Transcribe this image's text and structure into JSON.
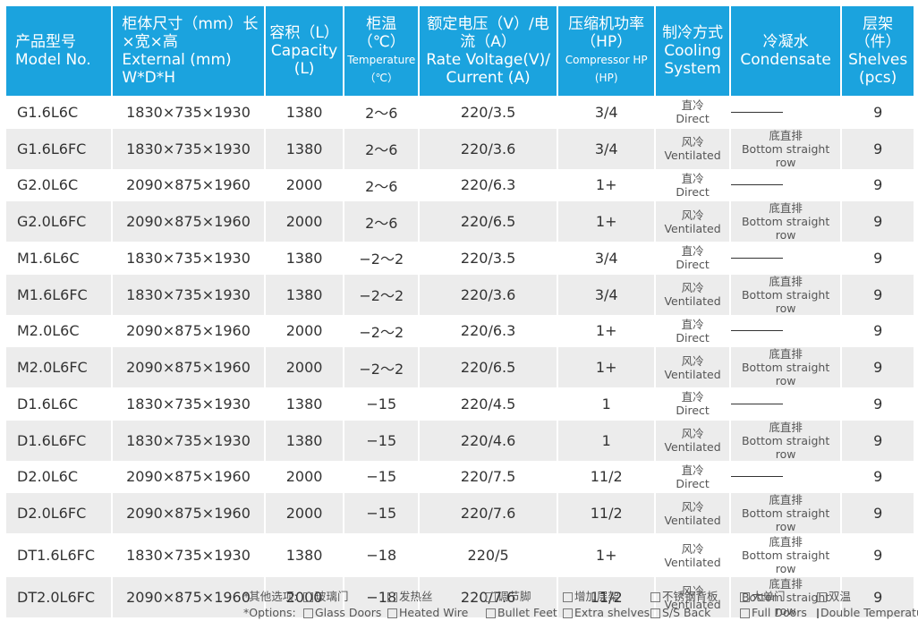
{
  "headers": [
    {
      "cn": "产品型号",
      "en": "Model No."
    },
    {
      "cn": "柜体尺寸（mm）长×宽×高",
      "en": "External (mm) W*D*H"
    },
    {
      "cn": "容积（L）",
      "en": "Capacity (L)"
    },
    {
      "cn": "柜温（℃）",
      "en": "Temperature（℃）"
    },
    {
      "cn": "额定电压（V）/电流（A）",
      "en": "Rate Voltage(V)/ Current (A)"
    },
    {
      "cn": "压缩机功率（HP）",
      "en": "Compressor HP (HP)"
    },
    {
      "cn": "制冷方式",
      "en": "Cooling System"
    },
    {
      "cn": "冷凝水",
      "en": "Condensate"
    },
    {
      "cn": "层架（件）",
      "en": "Shelves (pcs)"
    }
  ],
  "rows": [
    {
      "model": "G1.6L6C",
      "size": "1830×735×1930",
      "capacity": "1380",
      "temp": "2～6",
      "volt": "220/3.5",
      "hp": "3/4",
      "cooling_cn": "直冷",
      "cooling_en": "Direct",
      "cond_cn": "",
      "cond_en": "",
      "shelves": "9"
    },
    {
      "model": "G1.6L6FC",
      "size": "1830×735×1930",
      "capacity": "1380",
      "temp": "2～6",
      "volt": "220/3.6",
      "hp": "3/4",
      "cooling_cn": "风冷",
      "cooling_en": "Ventilated",
      "cond_cn": "底直排",
      "cond_en": "Bottom straight row",
      "shelves": "9"
    },
    {
      "model": "G2.0L6C",
      "size": "2090×875×1960",
      "capacity": "2000",
      "temp": "2～6",
      "volt": "220/6.3",
      "hp": "1+",
      "cooling_cn": "直冷",
      "cooling_en": "Direct",
      "cond_cn": "",
      "cond_en": "",
      "shelves": "9"
    },
    {
      "model": "G2.0L6FC",
      "size": "2090×875×1960",
      "capacity": "2000",
      "temp": "2～6",
      "volt": "220/6.5",
      "hp": "1+",
      "cooling_cn": "风冷",
      "cooling_en": "Ventilated",
      "cond_cn": "底直排",
      "cond_en": "Bottom straight row",
      "shelves": "9"
    },
    {
      "model": "M1.6L6C",
      "size": "1830×735×1930",
      "capacity": "1380",
      "temp": "−2～2",
      "volt": "220/3.5",
      "hp": "3/4",
      "cooling_cn": "直冷",
      "cooling_en": "Direct",
      "cond_cn": "",
      "cond_en": "",
      "shelves": "9"
    },
    {
      "model": "M1.6L6FC",
      "size": "1830×735×1930",
      "capacity": "1380",
      "temp": "−2～2",
      "volt": "220/3.6",
      "hp": "3/4",
      "cooling_cn": "风冷",
      "cooling_en": "Ventilated",
      "cond_cn": "底直排",
      "cond_en": "Bottom straight row",
      "shelves": "9"
    },
    {
      "model": "M2.0L6C",
      "size": "2090×875×1960",
      "capacity": "2000",
      "temp": "−2～2",
      "volt": "220/6.3",
      "hp": "1+",
      "cooling_cn": "直冷",
      "cooling_en": "Direct",
      "cond_cn": "",
      "cond_en": "",
      "shelves": "9"
    },
    {
      "model": "M2.0L6FC",
      "size": "2090×875×1960",
      "capacity": "2000",
      "temp": "−2～2",
      "volt": "220/6.5",
      "hp": "1+",
      "cooling_cn": "风冷",
      "cooling_en": "Ventilated",
      "cond_cn": "底直排",
      "cond_en": "Bottom straight row",
      "shelves": "9"
    },
    {
      "model": "D1.6L6C",
      "size": "1830×735×1930",
      "capacity": "1380",
      "temp": "−15",
      "volt": "220/4.5",
      "hp": "1",
      "cooling_cn": "直冷",
      "cooling_en": "Direct",
      "cond_cn": "",
      "cond_en": "",
      "shelves": "9"
    },
    {
      "model": "D1.6L6FC",
      "size": "1830×735×1930",
      "capacity": "1380",
      "temp": "−15",
      "volt": "220/4.6",
      "hp": "1",
      "cooling_cn": "风冷",
      "cooling_en": "Ventilated",
      "cond_cn": "底直排",
      "cond_en": "Bottom straight row",
      "shelves": "9"
    },
    {
      "model": "D2.0L6C",
      "size": "2090×875×1960",
      "capacity": "2000",
      "temp": "−15",
      "volt": "220/7.5",
      "hp": "11/2",
      "cooling_cn": "直冷",
      "cooling_en": "Direct",
      "cond_cn": "",
      "cond_en": "",
      "shelves": "9"
    },
    {
      "model": "D2.0L6FC",
      "size": "2090×875×1960",
      "capacity": "2000",
      "temp": "−15",
      "volt": "220/7.6",
      "hp": "11/2",
      "cooling_cn": "风冷",
      "cooling_en": "Ventilated",
      "cond_cn": "底直排",
      "cond_en": "Bottom straight row",
      "shelves": "9"
    },
    {
      "model": "DT1.6L6FC",
      "size": "1830×735×1930",
      "capacity": "1380",
      "temp": "−18",
      "volt": "220/5",
      "hp": "1+",
      "cooling_cn": "风冷",
      "cooling_en": "Ventilated",
      "cond_cn": "底直排",
      "cond_en": "Bottom straight row",
      "shelves": "9"
    },
    {
      "model": "DT2.0L6FC",
      "size": "2090×875×1960",
      "capacity": "2000",
      "temp": "−18",
      "volt": "220/7.6",
      "hp": "11/2",
      "cooling_cn": "风冷",
      "cooling_en": "Ventilated",
      "cond_cn": "底直排",
      "cond_en": "Bottom straight row",
      "shelves": "9"
    }
  ],
  "options": {
    "label_cn": "*其他选项:",
    "label_en": "*Options:",
    "items_cn": [
      "玻璃门",
      "发热丝",
      "调节脚",
      "增加层架",
      "不锈钢背板",
      "大单门",
      "双温"
    ],
    "items_en": [
      "Glass Doors",
      "Heated Wire",
      "Bullet Feet",
      "Extra shelves",
      "S/S Back",
      "Full Doors",
      "Double Temperature"
    ]
  },
  "colors": {
    "header_bg": "#1ba3de",
    "stripe": "#ececec"
  }
}
